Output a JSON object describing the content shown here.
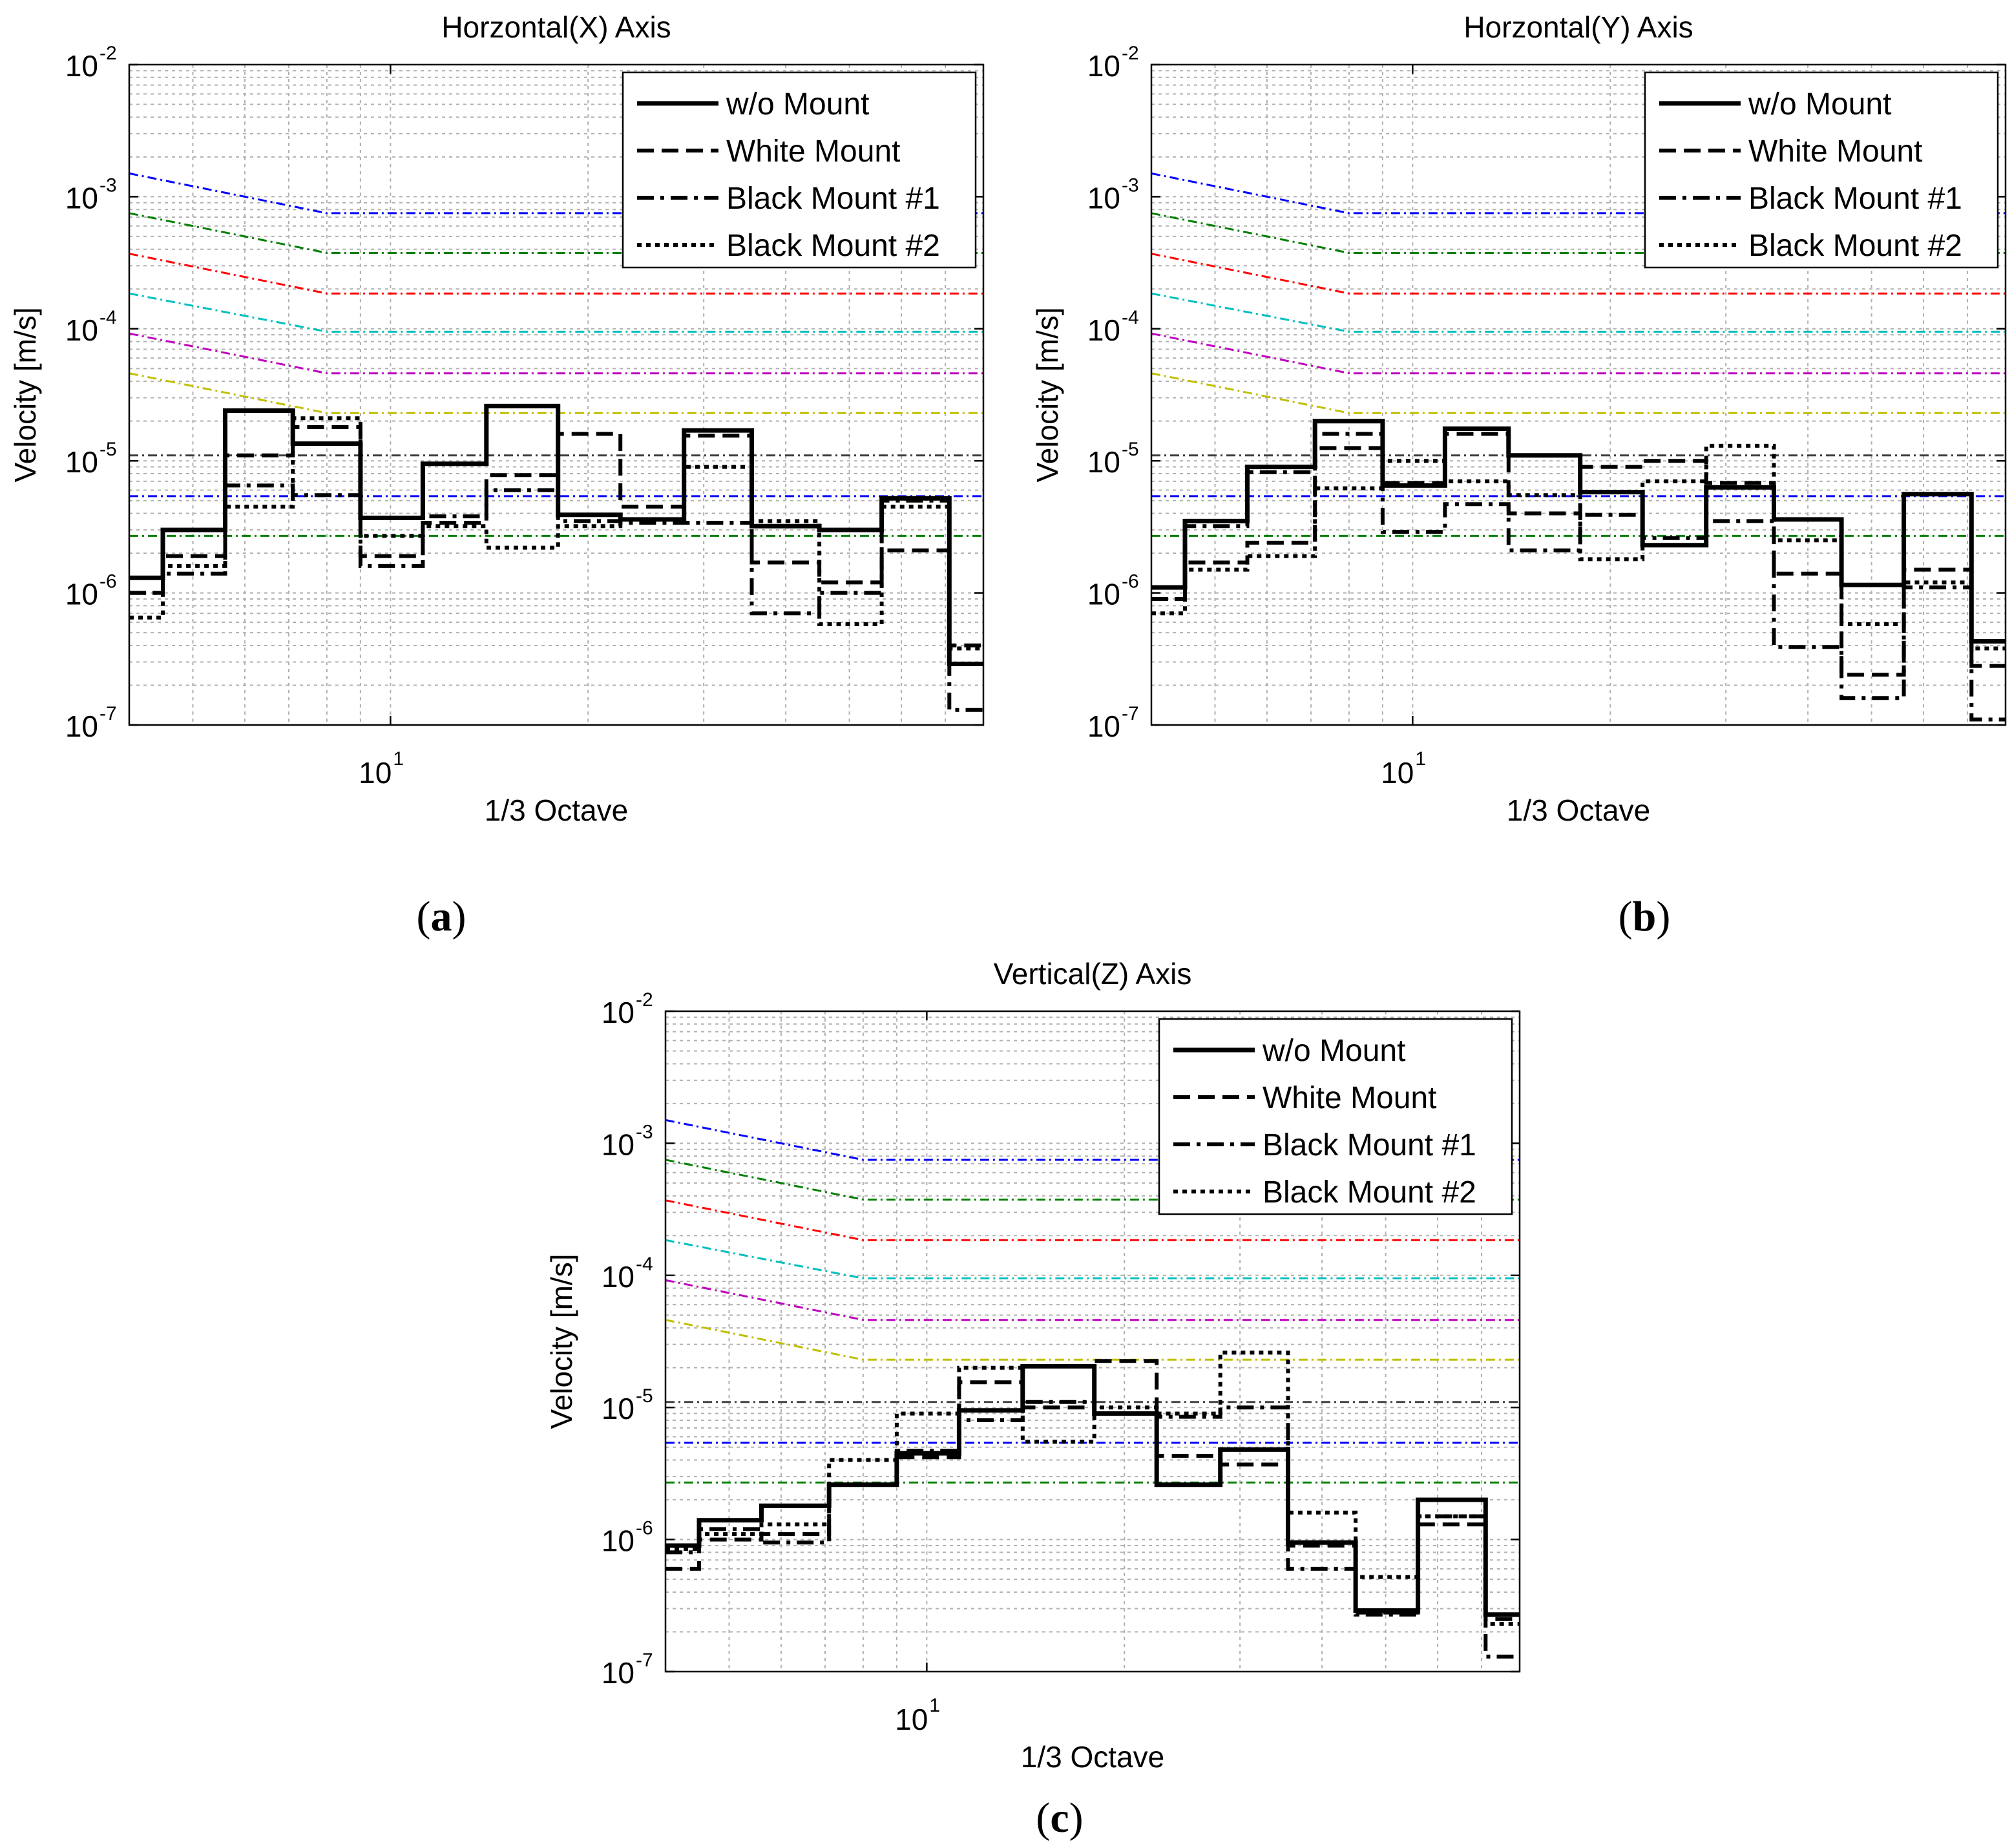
{
  "chart_data": [
    {
      "type": "line",
      "panel_caption": "a",
      "title": "Horzontal(X) Axis",
      "xlabel": "1/3 Octave",
      "ylabel": "Velocity [m/s]",
      "xscale": "log",
      "yscale": "log",
      "xlim": [
        4,
        80
      ],
      "ylim": [
        1e-07,
        0.01
      ],
      "xticklabels": [
        {
          "base": "10",
          "exp": "1",
          "value": 10
        }
      ],
      "yticklabels": [
        {
          "base": "10",
          "exp": "-7",
          "value": 1e-07
        },
        {
          "base": "10",
          "exp": "-6",
          "value": 1e-06
        },
        {
          "base": "10",
          "exp": "-5",
          "value": 1e-05
        },
        {
          "base": "10",
          "exp": "-4",
          "value": 0.0001
        },
        {
          "base": "10",
          "exp": "-3",
          "value": 0.001
        },
        {
          "base": "10",
          "exp": "-2",
          "value": 0.01
        }
      ],
      "grid": true,
      "legend_position": "top-right",
      "edges": [
        4,
        4.5,
        5.6,
        7.1,
        9,
        11.2,
        14,
        18,
        22.4,
        28,
        35.5,
        45,
        56,
        71,
        80
      ],
      "series": [
        {
          "name": "w/o Mount",
          "style": "solid",
          "values": [
            1.3e-06,
            3e-06,
            2.4e-05,
            1.35e-05,
            3.7e-06,
            9.5e-06,
            2.6e-05,
            3.9e-06,
            3.6e-06,
            1.7e-05,
            3.2e-06,
            3e-06,
            5.2e-06,
            2.9e-07
          ]
        },
        {
          "name": "White Mount",
          "style": "dashed",
          "values": [
            1e-06,
            1.9e-06,
            1.1e-05,
            1.8e-05,
            1.9e-06,
            3.4e-06,
            7.8e-06,
            1.6e-05,
            4.5e-06,
            1.55e-05,
            1.7e-06,
            1.2e-06,
            2.1e-06,
            4e-07
          ]
        },
        {
          "name": "Black Mount #1",
          "style": "dashdot",
          "values": [
            1e-06,
            1.4e-06,
            6.5e-06,
            5.5e-06,
            1.6e-06,
            3.8e-06,
            6e-06,
            3.5e-06,
            3.4e-06,
            3.4e-06,
            7e-07,
            1e-06,
            5e-06,
            1.3e-07
          ]
        },
        {
          "name": "Black Mount #2",
          "style": "dotted",
          "values": [
            6.5e-07,
            1.6e-06,
            4.5e-06,
            2.1e-05,
            2.7e-06,
            3.2e-06,
            2.2e-06,
            3.2e-06,
            3.6e-06,
            9e-06,
            3.5e-06,
            5.8e-07,
            4.5e-06,
            3.8e-07
          ]
        }
      ],
      "criteria": [
        {
          "color": "#0000ff",
          "start": 0.0015,
          "level": 0.00075
        },
        {
          "color": "#008000",
          "start": 0.00075,
          "level": 0.000375
        },
        {
          "color": "#ff0000",
          "start": 0.00037,
          "level": 0.000185
        },
        {
          "color": "#00bfbf",
          "start": 0.000185,
          "level": 9.5e-05
        },
        {
          "color": "#bf00bf",
          "start": 9.2e-05,
          "level": 4.6e-05
        },
        {
          "color": "#bfbf00",
          "start": 4.6e-05,
          "level": 2.3e-05
        },
        {
          "color": "#404040",
          "start": 1.1e-05,
          "level": 1.1e-05
        },
        {
          "color": "#0000ff",
          "start": 5.4e-06,
          "level": 5.4e-06
        },
        {
          "color": "#008000",
          "start": 2.7e-06,
          "level": 2.7e-06
        }
      ]
    },
    {
      "type": "line",
      "panel_caption": "b",
      "title": "Horzontal(Y) Axis",
      "xlabel": "1/3 Octave",
      "ylabel": "Velocity [m/s]",
      "xscale": "log",
      "yscale": "log",
      "xlim": [
        4,
        80
      ],
      "ylim": [
        1e-07,
        0.01
      ],
      "xticklabels": [
        {
          "base": "10",
          "exp": "1",
          "value": 10
        }
      ],
      "yticklabels": [
        {
          "base": "10",
          "exp": "-7",
          "value": 1e-07
        },
        {
          "base": "10",
          "exp": "-6",
          "value": 1e-06
        },
        {
          "base": "10",
          "exp": "-5",
          "value": 1e-05
        },
        {
          "base": "10",
          "exp": "-4",
          "value": 0.0001
        },
        {
          "base": "10",
          "exp": "-3",
          "value": 0.001
        },
        {
          "base": "10",
          "exp": "-2",
          "value": 0.01
        }
      ],
      "grid": true,
      "legend_position": "top-right",
      "edges": [
        4,
        4.5,
        5.6,
        7.1,
        9,
        11.2,
        14,
        18,
        22.4,
        28,
        35.5,
        45,
        56,
        71,
        80
      ],
      "series": [
        {
          "name": "w/o Mount",
          "style": "solid",
          "values": [
            1.1e-06,
            3.5e-06,
            9e-06,
            2e-05,
            6.5e-06,
            1.75e-05,
            1.1e-05,
            5.8e-06,
            2.3e-06,
            6.3e-06,
            3.6e-06,
            1.15e-06,
            5.6e-06,
            4.3e-07
          ]
        },
        {
          "name": "White Mount",
          "style": "dashed",
          "values": [
            9e-07,
            1.7e-06,
            2.4e-06,
            1.25e-05,
            6.8e-06,
            1.6e-05,
            4e-06,
            9e-06,
            1e-05,
            6.8e-06,
            1.4e-06,
            2.4e-07,
            1.5e-06,
            2.8e-07
          ]
        },
        {
          "name": "Black Mount #1",
          "style": "dashdot",
          "values": [
            9e-07,
            3.2e-06,
            8.2e-06,
            1.6e-05,
            2.9e-06,
            4.7e-06,
            2.1e-06,
            3.9e-06,
            2.6e-06,
            3.5e-06,
            3.9e-07,
            1.6e-07,
            1.1e-06,
            1.1e-07
          ]
        },
        {
          "name": "Black Mount #2",
          "style": "dotted",
          "values": [
            7e-07,
            1.5e-06,
            1.9e-06,
            6.2e-06,
            1e-05,
            7e-06,
            5.5e-06,
            1.8e-06,
            7e-06,
            1.3e-05,
            2.5e-06,
            5.8e-07,
            1.2e-06,
            3.8e-07
          ]
        }
      ],
      "criteria": [
        {
          "color": "#0000ff",
          "start": 0.0015,
          "level": 0.00075
        },
        {
          "color": "#008000",
          "start": 0.00075,
          "level": 0.000375
        },
        {
          "color": "#ff0000",
          "start": 0.00037,
          "level": 0.000185
        },
        {
          "color": "#00bfbf",
          "start": 0.000185,
          "level": 9.5e-05
        },
        {
          "color": "#bf00bf",
          "start": 9.2e-05,
          "level": 4.6e-05
        },
        {
          "color": "#bfbf00",
          "start": 4.6e-05,
          "level": 2.3e-05
        },
        {
          "color": "#404040",
          "start": 1.1e-05,
          "level": 1.1e-05
        },
        {
          "color": "#0000ff",
          "start": 5.4e-06,
          "level": 5.4e-06
        },
        {
          "color": "#008000",
          "start": 2.7e-06,
          "level": 2.7e-06
        }
      ]
    },
    {
      "type": "line",
      "panel_caption": "c",
      "title": "Vertical(Z) Axis",
      "xlabel": "1/3 Octave",
      "ylabel": "Velocity [m/s]",
      "xscale": "log",
      "yscale": "log",
      "xlim": [
        4,
        80
      ],
      "ylim": [
        1e-07,
        0.01
      ],
      "xticklabels": [
        {
          "base": "10",
          "exp": "1",
          "value": 10
        }
      ],
      "yticklabels": [
        {
          "base": "10",
          "exp": "-7",
          "value": 1e-07
        },
        {
          "base": "10",
          "exp": "-6",
          "value": 1e-06
        },
        {
          "base": "10",
          "exp": "-5",
          "value": 1e-05
        },
        {
          "base": "10",
          "exp": "-4",
          "value": 0.0001
        },
        {
          "base": "10",
          "exp": "-3",
          "value": 0.001
        },
        {
          "base": "10",
          "exp": "-2",
          "value": 0.01
        }
      ],
      "grid": true,
      "legend_position": "top-right",
      "edges": [
        4,
        4.5,
        5.6,
        7.1,
        9,
        11.2,
        14,
        18,
        22.4,
        28,
        35.5,
        45,
        56,
        71,
        80
      ],
      "series": [
        {
          "name": "w/o Mount",
          "style": "solid",
          "values": [
            9e-07,
            1.4e-06,
            1.8e-06,
            2.6e-06,
            4.5e-06,
            9.5e-06,
            2.05e-05,
            9e-06,
            2.6e-06,
            4.8e-06,
            9.5e-07,
            2.9e-07,
            2e-06,
            2.7e-07
          ]
        },
        {
          "name": "White Mount",
          "style": "dashed",
          "values": [
            6e-07,
            1e-06,
            1.1e-06,
            2.6e-06,
            4.2e-06,
            1.55e-05,
            1e-05,
            2.25e-05,
            4.3e-06,
            3.7e-06,
            9e-07,
            2.8e-07,
            1.3e-06,
            2.5e-07
          ]
        },
        {
          "name": "Black Mount #1",
          "style": "dashdot",
          "values": [
            8e-07,
            1.2e-06,
            9.5e-07,
            2.6e-06,
            4.7e-06,
            8e-06,
            1.1e-05,
            9e-06,
            8.5e-06,
            1e-05,
            6e-07,
            2.7e-07,
            1.5e-06,
            1.3e-07
          ]
        },
        {
          "name": "Black Mount #2",
          "style": "dotted",
          "values": [
            8.5e-07,
            1.1e-06,
            1.3e-06,
            4e-06,
            9e-06,
            2e-05,
            5.5e-06,
            1e-05,
            9e-06,
            2.6e-05,
            1.6e-06,
            5.2e-07,
            1.5e-06,
            2.3e-07
          ]
        }
      ],
      "criteria": [
        {
          "color": "#0000ff",
          "start": 0.0015,
          "level": 0.00075
        },
        {
          "color": "#008000",
          "start": 0.00075,
          "level": 0.000375
        },
        {
          "color": "#ff0000",
          "start": 0.00037,
          "level": 0.000185
        },
        {
          "color": "#00bfbf",
          "start": 0.000185,
          "level": 9.5e-05
        },
        {
          "color": "#bf00bf",
          "start": 9.2e-05,
          "level": 4.6e-05
        },
        {
          "color": "#bfbf00",
          "start": 4.6e-05,
          "level": 2.3e-05
        },
        {
          "color": "#404040",
          "start": 1.1e-05,
          "level": 1.1e-05
        },
        {
          "color": "#0000ff",
          "start": 5.4e-06,
          "level": 5.4e-06
        },
        {
          "color": "#008000",
          "start": 2.7e-06,
          "level": 2.7e-06
        }
      ]
    }
  ]
}
